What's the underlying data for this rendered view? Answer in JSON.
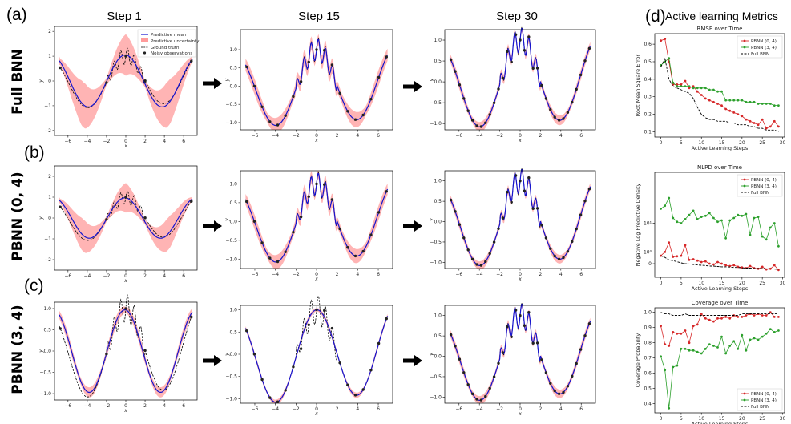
{
  "panel_labels": {
    "a": "(a)",
    "b": "(b)",
    "c": "(c)",
    "d": "(d)"
  },
  "step_titles": [
    "Step 1",
    "Step 15",
    "Step 30"
  ],
  "row_labels": [
    "Full BNN",
    "PBNN (0, 4)",
    "PBNN (3, 4)"
  ],
  "metrics_title": "Active learning Metrics",
  "regression_legend": [
    "Predictive mean",
    "Predictive uncertainty",
    "Ground truth",
    "Noisy observations"
  ],
  "colors": {
    "mean": "#1515d0",
    "band": "#ff9b9b",
    "truth": "#000000",
    "pbnn04": "#d62728",
    "pbnn34": "#2ca02c",
    "full": "#000000"
  },
  "regression_axes": {
    "xlabel": "x",
    "ylabel": "y",
    "xticks": [
      -6,
      -4,
      -2,
      0,
      2,
      4,
      6
    ],
    "xtick_labels": [
      "−6",
      "−4",
      "−2",
      "0",
      "2",
      "4",
      "6"
    ],
    "xlim": [
      -7.4,
      7.4
    ],
    "panels": [
      [
        {
          "ylim": [
            -2.2,
            2.2
          ],
          "yticks": [
            -2,
            -1,
            0,
            1,
            2
          ],
          "ytick_labels": [
            "−2",
            "−1",
            "0",
            "1",
            "2"
          ]
        },
        {
          "ylim": [
            -1.2,
            1.55
          ],
          "yticks": [
            -1.0,
            -0.5,
            0.0,
            0.5,
            1.0
          ],
          "ytick_labels": [
            "−1.0",
            "−0.5",
            "0.0",
            "0.5",
            "1.0"
          ]
        },
        {
          "ylim": [
            -1.15,
            1.25
          ],
          "yticks": [
            -1.0,
            -0.5,
            0.0,
            0.5,
            1.0
          ],
          "ytick_labels": [
            "−1.0",
            "−0.5",
            "0.0",
            "0.5",
            "1.0"
          ]
        }
      ],
      [
        {
          "ylim": [
            -2.5,
            2.5
          ],
          "yticks": [
            -2,
            -1,
            0,
            1,
            2
          ],
          "ytick_labels": [
            "−2",
            "−1",
            "0",
            "1",
            "2"
          ]
        },
        {
          "ylim": [
            -1.25,
            1.35
          ],
          "yticks": [
            -1.0,
            -0.5,
            0.0,
            0.5,
            1.0
          ],
          "ytick_labels": [
            "−1.0",
            "−0.5",
            "0.0",
            "0.5",
            "1.0"
          ]
        },
        {
          "ylim": [
            -1.15,
            1.25
          ],
          "yticks": [
            -1.0,
            -0.5,
            0.0,
            0.5,
            1.0
          ],
          "ytick_labels": [
            "−1.0",
            "−0.5",
            "0.0",
            "0.5",
            "1.0"
          ]
        }
      ],
      [
        {
          "ylim": [
            -1.15,
            1.15
          ],
          "yticks": [
            -1.0,
            -0.5,
            0.0,
            0.5,
            1.0
          ],
          "ytick_labels": [
            "−1.0",
            "−0.5",
            "0.0",
            "0.5",
            "1.0"
          ]
        },
        {
          "ylim": [
            -1.1,
            1.1
          ],
          "yticks": [
            -1.0,
            -0.5,
            0.0,
            0.5,
            1.0
          ],
          "ytick_labels": [
            "−1.0",
            "−0.5",
            "0.0",
            "0.5",
            "1.0"
          ]
        },
        {
          "ylim": [
            -1.15,
            1.25
          ],
          "yticks": [
            -1.0,
            -0.5,
            0.0,
            0.5,
            1.0
          ],
          "ytick_labels": [
            "−1.0",
            "−0.5",
            "0.0",
            "0.5",
            "1.0"
          ]
        }
      ]
    ],
    "band_halfwidth": [
      [
        0.65,
        0.18,
        0.1
      ],
      [
        0.55,
        0.16,
        0.09
      ],
      [
        0.1,
        0.05,
        0.09
      ]
    ],
    "observation_counts": [
      5,
      19,
      33
    ]
  },
  "chart_data": [
    {
      "type": "line",
      "title": "RMSE over Time",
      "xlabel": "Active Learning Steps",
      "ylabel": "Root Mean Square Error",
      "xlim": [
        -1.5,
        30.5
      ],
      "ylim": [
        0.07,
        0.66
      ],
      "xticks": [
        0,
        5,
        10,
        15,
        20,
        25,
        30
      ],
      "xtick_labels": [
        "0",
        "5",
        "10",
        "15",
        "20",
        "25",
        "30"
      ],
      "yticks": [
        0.1,
        0.2,
        0.3,
        0.4,
        0.5,
        0.6
      ],
      "ytick_labels": [
        "0.1",
        "0.2",
        "0.3",
        "0.4",
        "0.5",
        "0.6"
      ],
      "legend_position": "top-right",
      "x": [
        0,
        1,
        2,
        3,
        4,
        5,
        6,
        7,
        8,
        9,
        10,
        11,
        12,
        13,
        14,
        15,
        16,
        17,
        18,
        19,
        20,
        21,
        22,
        23,
        24,
        25,
        26,
        27,
        28,
        29
      ],
      "series": [
        {
          "name": "PBNN (0, 4)",
          "values": [
            0.62,
            0.63,
            0.5,
            0.37,
            0.37,
            0.37,
            0.39,
            0.35,
            0.36,
            0.33,
            0.31,
            0.29,
            0.28,
            0.27,
            0.26,
            0.25,
            0.23,
            0.22,
            0.21,
            0.2,
            0.19,
            0.17,
            0.16,
            0.15,
            0.14,
            0.17,
            0.12,
            0.13,
            0.16,
            0.13
          ]
        },
        {
          "name": "PBNN (3, 4)",
          "values": [
            0.48,
            0.5,
            0.52,
            0.38,
            0.36,
            0.36,
            0.36,
            0.36,
            0.35,
            0.35,
            0.35,
            0.35,
            0.34,
            0.34,
            0.33,
            0.33,
            0.28,
            0.28,
            0.28,
            0.28,
            0.28,
            0.27,
            0.27,
            0.27,
            0.26,
            0.26,
            0.26,
            0.26,
            0.25,
            0.25
          ]
        },
        {
          "name": "Full BNN",
          "values": [
            0.47,
            0.52,
            0.4,
            0.36,
            0.35,
            0.34,
            0.33,
            0.32,
            0.29,
            0.24,
            0.2,
            0.18,
            0.17,
            0.17,
            0.16,
            0.16,
            0.16,
            0.15,
            0.15,
            0.14,
            0.14,
            0.14,
            0.13,
            0.13,
            0.12,
            0.12,
            0.11,
            0.11,
            0.11,
            0.1
          ]
        }
      ]
    },
    {
      "type": "line",
      "title": "NLPD over Time",
      "xlabel": "Active Learning Steps",
      "ylabel": "Negative Log Predictive Density",
      "yscale": "symlog",
      "xlim": [
        -1.5,
        30.5
      ],
      "ylim_transformed": [
        -0.35,
        2.35
      ],
      "xticks": [
        0,
        5,
        10,
        15,
        20,
        25,
        30
      ],
      "xtick_labels": [
        "0",
        "5",
        "10",
        "15",
        "20",
        "25",
        "30"
      ],
      "yticks": [
        0,
        1,
        10
      ],
      "ytick_labels": [
        "0",
        "10⁰",
        "10¹"
      ],
      "legend_position": "top-right",
      "x": [
        0,
        1,
        2,
        3,
        4,
        5,
        6,
        7,
        8,
        9,
        10,
        11,
        12,
        13,
        14,
        15,
        16,
        17,
        18,
        19,
        20,
        21,
        22,
        23,
        24,
        25,
        26,
        27,
        28,
        29
      ],
      "series": [
        {
          "name": "PBNN (0, 4)",
          "values": [
            0.6,
            1.0,
            2.5,
            0.5,
            0.55,
            0.6,
            2.0,
            0.25,
            0.3,
            0.2,
            0.1,
            0.15,
            0.0,
            -0.05,
            0.1,
            0.0,
            -0.1,
            -0.15,
            -0.1,
            -0.2,
            -0.25,
            -0.3,
            -0.15,
            -0.3,
            -0.35,
            -0.2,
            -0.4,
            -0.35,
            -0.1,
            -0.45
          ]
        },
        {
          "name": "PBNN (3, 4)",
          "values": [
            25,
            30,
            48,
            14,
            11,
            10,
            13,
            17,
            22,
            13,
            15,
            16,
            19,
            14,
            11,
            12,
            3.5,
            12,
            14,
            17,
            16,
            18,
            4.5,
            14,
            15,
            4.0,
            3.2,
            7.5,
            10,
            1.8
          ]
        },
        {
          "name": "Full BNN",
          "values": [
            0.6,
            0.45,
            0.25,
            0.2,
            0.12,
            0.05,
            0.0,
            -0.02,
            -0.05,
            -0.08,
            -0.1,
            -0.12,
            -0.15,
            -0.15,
            -0.18,
            -0.2,
            -0.2,
            -0.22,
            -0.25,
            -0.25,
            -0.28,
            -0.3,
            -0.3,
            -0.32,
            -0.33,
            -0.33,
            -0.35,
            -0.35,
            -0.37,
            -0.4
          ]
        }
      ]
    },
    {
      "type": "line",
      "title": "Coverage over Time",
      "xlabel": "Active Learning Steps",
      "ylabel": "Coverage Probability",
      "xlim": [
        -1.5,
        30.5
      ],
      "ylim": [
        0.34,
        1.03
      ],
      "xticks": [
        0,
        5,
        10,
        15,
        20,
        25,
        30
      ],
      "xtick_labels": [
        "0",
        "5",
        "10",
        "15",
        "20",
        "25",
        "30"
      ],
      "yticks": [
        0.4,
        0.5,
        0.6,
        0.7,
        0.8,
        0.9,
        1.0
      ],
      "ytick_labels": [
        "0.4",
        "0.5",
        "0.6",
        "0.7",
        "0.8",
        "0.9",
        "1.0"
      ],
      "legend_position": "bottom-right",
      "x": [
        0,
        1,
        2,
        3,
        4,
        5,
        6,
        7,
        8,
        9,
        10,
        11,
        12,
        13,
        14,
        15,
        16,
        17,
        18,
        19,
        20,
        21,
        22,
        23,
        24,
        25,
        26,
        27,
        28,
        29
      ],
      "series": [
        {
          "name": "PBNN (0, 4)",
          "values": [
            0.91,
            0.79,
            0.78,
            0.87,
            0.86,
            0.86,
            0.88,
            0.8,
            0.91,
            0.92,
            0.99,
            0.96,
            0.95,
            0.94,
            0.96,
            0.96,
            0.97,
            0.96,
            0.98,
            0.97,
            0.97,
            0.98,
            0.99,
            0.98,
            0.99,
            0.98,
            0.98,
            1.0,
            0.97,
            0.97
          ]
        },
        {
          "name": "PBNN (3, 4)",
          "values": [
            0.71,
            0.62,
            0.37,
            0.64,
            0.65,
            0.76,
            0.76,
            0.75,
            0.75,
            0.74,
            0.73,
            0.76,
            0.79,
            0.78,
            0.77,
            0.84,
            0.73,
            0.78,
            0.81,
            0.76,
            0.85,
            0.75,
            0.82,
            0.83,
            0.82,
            0.84,
            0.86,
            0.89,
            0.87,
            0.88
          ]
        },
        {
          "name": "Full BNN",
          "values": [
            1.0,
            0.99,
            0.99,
            0.98,
            0.98,
            0.98,
            0.99,
            0.98,
            0.98,
            0.98,
            0.98,
            0.98,
            0.98,
            0.98,
            0.98,
            0.98,
            0.98,
            0.98,
            0.98,
            0.98,
            0.99,
            0.99,
            0.99,
            0.99,
            0.99,
            0.99,
            0.99,
            0.99,
            0.99,
            0.99
          ]
        }
      ]
    }
  ]
}
